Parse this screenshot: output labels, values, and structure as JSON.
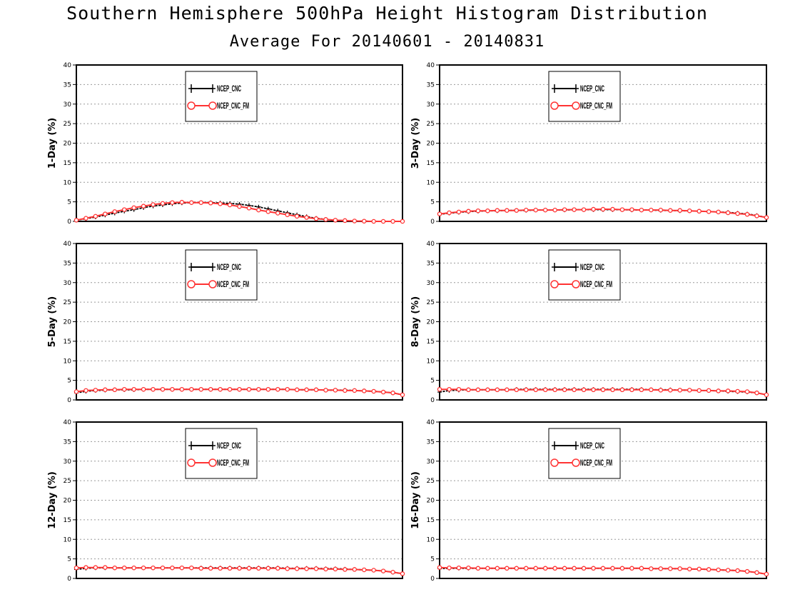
{
  "header": {
    "title": "Southern Hemisphere 500hPa Height Histogram Distribution",
    "subtitle": "Average For 20140601 - 20140831"
  },
  "colors": {
    "series1": "#000000",
    "series2": "#ff3333",
    "grid": "#999999"
  },
  "chart_data": [
    {
      "type": "line",
      "ylabel": "1-Day (%)",
      "ylim": [
        0,
        40
      ],
      "yticks": [
        0,
        5,
        10,
        15,
        20,
        25,
        30,
        35,
        40
      ],
      "grid": true,
      "legend": "top-left",
      "series": [
        {
          "name": "NCEP_CNC",
          "marker": "plus",
          "values": [
            0.3,
            0.7,
            1.1,
            1.6,
            2.1,
            2.6,
            3.0,
            3.5,
            3.9,
            4.2,
            4.5,
            4.7,
            4.8,
            4.8,
            4.8,
            4.7,
            4.6,
            4.4,
            4.1,
            3.7,
            3.2,
            2.7,
            2.2,
            1.7,
            1.2,
            0.8,
            0.5,
            0.3,
            0.2,
            0.1,
            0.05,
            0.0,
            0.0,
            0.0,
            0.0
          ]
        },
        {
          "name": "NCEP_CNC_FM",
          "marker": "circle",
          "values": [
            0.3,
            0.8,
            1.3,
            1.9,
            2.5,
            3.0,
            3.5,
            3.9,
            4.3,
            4.6,
            4.8,
            4.9,
            4.8,
            4.8,
            4.7,
            4.5,
            4.2,
            3.8,
            3.4,
            2.9,
            2.5,
            2.1,
            1.7,
            1.3,
            1.0,
            0.7,
            0.5,
            0.3,
            0.2,
            0.1,
            0.05,
            0.0,
            0.0,
            0.0,
            0.0
          ]
        }
      ]
    },
    {
      "type": "line",
      "ylabel": "3-Day (%)",
      "ylim": [
        0,
        40
      ],
      "yticks": [
        0,
        5,
        10,
        15,
        20,
        25,
        30,
        35,
        40
      ],
      "grid": true,
      "legend": "top-left",
      "series": [
        {
          "name": "NCEP_CNC",
          "marker": "plus",
          "values": [
            1.8,
            2.1,
            2.3,
            2.5,
            2.6,
            2.7,
            2.7,
            2.8,
            2.8,
            2.8,
            2.9,
            2.9,
            2.9,
            2.9,
            3.0,
            3.0,
            3.0,
            3.0,
            3.0,
            3.0,
            2.9,
            2.9,
            2.9,
            2.8,
            2.8,
            2.7,
            2.7,
            2.6,
            2.5,
            2.4,
            2.3,
            2.1,
            1.9,
            1.5,
            1.0
          ]
        },
        {
          "name": "NCEP_CNC_FM",
          "marker": "circle",
          "values": [
            1.9,
            2.2,
            2.4,
            2.6,
            2.7,
            2.7,
            2.8,
            2.8,
            2.8,
            2.9,
            2.9,
            2.9,
            2.9,
            3.0,
            3.0,
            3.0,
            3.1,
            3.1,
            3.1,
            3.0,
            3.0,
            2.9,
            2.9,
            2.9,
            2.8,
            2.8,
            2.7,
            2.6,
            2.5,
            2.4,
            2.2,
            2.0,
            1.8,
            1.4,
            1.0
          ]
        }
      ]
    },
    {
      "type": "line",
      "ylabel": "5-Day (%)",
      "ylim": [
        0,
        40
      ],
      "yticks": [
        0,
        5,
        10,
        15,
        20,
        25,
        30,
        35,
        40
      ],
      "grid": true,
      "legend": "top-left",
      "series": [
        {
          "name": "NCEP_CNC",
          "marker": "plus",
          "values": [
            1.8,
            2.2,
            2.4,
            2.5,
            2.6,
            2.6,
            2.6,
            2.7,
            2.7,
            2.7,
            2.7,
            2.7,
            2.7,
            2.7,
            2.7,
            2.7,
            2.7,
            2.7,
            2.7,
            2.7,
            2.7,
            2.7,
            2.7,
            2.6,
            2.6,
            2.6,
            2.5,
            2.5,
            2.5,
            2.4,
            2.3,
            2.2,
            2.0,
            1.8,
            1.3
          ]
        },
        {
          "name": "NCEP_CNC_FM",
          "marker": "circle",
          "values": [
            2.1,
            2.4,
            2.5,
            2.6,
            2.6,
            2.7,
            2.7,
            2.7,
            2.7,
            2.7,
            2.7,
            2.7,
            2.7,
            2.7,
            2.7,
            2.7,
            2.7,
            2.7,
            2.7,
            2.7,
            2.7,
            2.7,
            2.7,
            2.6,
            2.6,
            2.6,
            2.5,
            2.5,
            2.4,
            2.4,
            2.3,
            2.2,
            2.0,
            1.8,
            1.3
          ]
        }
      ]
    },
    {
      "type": "line",
      "ylabel": "8-Day (%)",
      "ylim": [
        0,
        40
      ],
      "yticks": [
        0,
        5,
        10,
        15,
        20,
        25,
        30,
        35,
        40
      ],
      "grid": true,
      "legend": "top-left",
      "series": [
        {
          "name": "NCEP_CNC",
          "marker": "plus",
          "values": [
            2.0,
            2.4,
            2.5,
            2.6,
            2.6,
            2.6,
            2.6,
            2.6,
            2.7,
            2.7,
            2.7,
            2.7,
            2.7,
            2.7,
            2.7,
            2.7,
            2.7,
            2.7,
            2.7,
            2.7,
            2.7,
            2.7,
            2.6,
            2.6,
            2.6,
            2.5,
            2.5,
            2.4,
            2.4,
            2.3,
            2.2,
            2.1,
            2.0,
            1.8,
            1.3
          ]
        },
        {
          "name": "NCEP_CNC_FM",
          "marker": "circle",
          "values": [
            2.7,
            2.7,
            2.7,
            2.6,
            2.6,
            2.6,
            2.6,
            2.6,
            2.6,
            2.6,
            2.6,
            2.6,
            2.6,
            2.6,
            2.6,
            2.6,
            2.6,
            2.6,
            2.6,
            2.6,
            2.6,
            2.6,
            2.6,
            2.5,
            2.5,
            2.5,
            2.5,
            2.4,
            2.4,
            2.3,
            2.3,
            2.2,
            2.1,
            1.8,
            1.3
          ]
        }
      ]
    },
    {
      "type": "line",
      "ylabel": "12-Day (%)",
      "ylim": [
        0,
        40
      ],
      "yticks": [
        0,
        5,
        10,
        15,
        20,
        25,
        30,
        35,
        40
      ],
      "grid": true,
      "legend": "top-left",
      "series": [
        {
          "name": "NCEP_CNC",
          "marker": "plus",
          "values": [
            2.3,
            2.6,
            2.7,
            2.7,
            2.7,
            2.7,
            2.7,
            2.7,
            2.7,
            2.7,
            2.7,
            2.7,
            2.7,
            2.7,
            2.7,
            2.7,
            2.7,
            2.7,
            2.7,
            2.7,
            2.7,
            2.7,
            2.6,
            2.6,
            2.6,
            2.6,
            2.5,
            2.5,
            2.4,
            2.3,
            2.2,
            2.1,
            1.9,
            1.6,
            1.2
          ]
        },
        {
          "name": "NCEP_CNC_FM",
          "marker": "circle",
          "values": [
            2.7,
            2.8,
            2.8,
            2.8,
            2.7,
            2.7,
            2.7,
            2.7,
            2.7,
            2.7,
            2.7,
            2.7,
            2.7,
            2.6,
            2.6,
            2.6,
            2.6,
            2.6,
            2.6,
            2.6,
            2.6,
            2.6,
            2.5,
            2.5,
            2.5,
            2.5,
            2.4,
            2.4,
            2.3,
            2.3,
            2.2,
            2.1,
            1.9,
            1.6,
            1.2
          ]
        }
      ]
    },
    {
      "type": "line",
      "ylabel": "16-Day (%)",
      "ylim": [
        0,
        40
      ],
      "yticks": [
        0,
        5,
        10,
        15,
        20,
        25,
        30,
        35,
        40
      ],
      "grid": true,
      "legend": "top-left",
      "series": [
        {
          "name": "NCEP_CNC",
          "marker": "plus",
          "values": [
            2.5,
            2.6,
            2.6,
            2.6,
            2.6,
            2.6,
            2.6,
            2.6,
            2.6,
            2.6,
            2.6,
            2.6,
            2.6,
            2.6,
            2.6,
            2.6,
            2.6,
            2.6,
            2.6,
            2.6,
            2.6,
            2.6,
            2.5,
            2.5,
            2.5,
            2.5,
            2.4,
            2.4,
            2.3,
            2.2,
            2.1,
            2.0,
            1.8,
            1.5,
            1.1
          ]
        },
        {
          "name": "NCEP_CNC_FM",
          "marker": "circle",
          "values": [
            2.8,
            2.7,
            2.7,
            2.7,
            2.6,
            2.6,
            2.6,
            2.6,
            2.6,
            2.6,
            2.6,
            2.6,
            2.6,
            2.6,
            2.6,
            2.6,
            2.6,
            2.6,
            2.6,
            2.6,
            2.6,
            2.6,
            2.5,
            2.5,
            2.5,
            2.5,
            2.4,
            2.4,
            2.3,
            2.2,
            2.1,
            2.0,
            1.8,
            1.5,
            1.1
          ]
        }
      ]
    }
  ]
}
